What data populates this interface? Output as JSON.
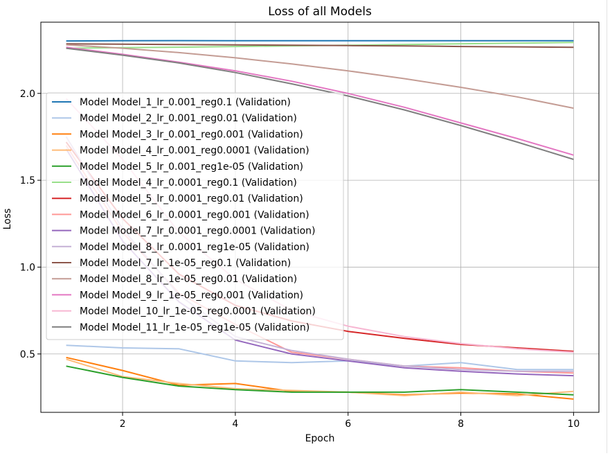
{
  "chart_data": {
    "type": "line",
    "title": "Loss of all Models",
    "xlabel": "Epoch",
    "ylabel": "Loss",
    "xlim": [
      0.55,
      10.45
    ],
    "ylim": [
      0.164,
      2.41
    ],
    "x_ticks": [
      2,
      4,
      6,
      8,
      10
    ],
    "y_ticks": [
      0.5,
      1.0,
      1.5,
      2.0
    ],
    "x_tick_labels": [
      "2",
      "4",
      "6",
      "8",
      "10"
    ],
    "y_tick_labels": [
      "0.5",
      "1.0",
      "1.5",
      "2.0"
    ],
    "grid": true,
    "legend_position": "upper-left",
    "x": [
      1,
      2,
      3,
      4,
      5,
      6,
      7,
      8,
      9,
      10
    ],
    "series": [
      {
        "name": "Model Model_1_lr_0.001_reg0.1 (Validation)",
        "color": "#1f77b4",
        "values": [
          2.302,
          2.303,
          2.304,
          2.303,
          2.303,
          2.303,
          2.303,
          2.303,
          2.303,
          2.303
        ]
      },
      {
        "name": "Model Model_2_lr_0.001_reg0.01 (Validation)",
        "color": "#aec7e8",
        "values": [
          0.55,
          0.535,
          0.53,
          0.46,
          0.45,
          0.46,
          0.43,
          0.45,
          0.41,
          0.41
        ]
      },
      {
        "name": "Model Model_3_lr_0.001_reg0.001 (Validation)",
        "color": "#ff7f0e",
        "values": [
          0.48,
          0.405,
          0.32,
          0.33,
          0.285,
          0.28,
          0.265,
          0.275,
          0.27,
          0.24
        ]
      },
      {
        "name": "Model Model_4_lr_0.001_reg0.0001 (Validation)",
        "color": "#ffbb78",
        "values": [
          0.47,
          0.37,
          0.33,
          0.3,
          0.29,
          0.28,
          0.26,
          0.28,
          0.26,
          0.285
        ]
      },
      {
        "name": "Model Model_5_lr_0.001_reg1e-05 (Validation)",
        "color": "#2ca02c",
        "values": [
          0.43,
          0.365,
          0.315,
          0.295,
          0.28,
          0.28,
          0.28,
          0.295,
          0.28,
          0.265
        ]
      },
      {
        "name": "Model Model_4_lr_0.0001_reg0.1 (Validation)",
        "color": "#98df8a",
        "values": [
          2.26,
          2.263,
          2.266,
          2.27,
          2.273,
          2.277,
          2.281,
          2.285,
          2.289,
          2.293
        ]
      },
      {
        "name": "Model Model_5_lr_0.0001_reg0.01 (Validation)",
        "color": "#d62728",
        "values": [
          1.72,
          1.28,
          0.96,
          0.78,
          0.69,
          0.63,
          0.59,
          0.555,
          0.535,
          0.515
        ]
      },
      {
        "name": "Model Model_6_lr_0.0001_reg0.001 (Validation)",
        "color": "#ff9896",
        "values": [
          1.7,
          1.2,
          0.85,
          0.67,
          0.51,
          0.47,
          0.43,
          0.42,
          0.4,
          0.39
        ]
      },
      {
        "name": "Model Model_7_lr_0.0001_reg0.0001 (Validation)",
        "color": "#9467bd",
        "values": [
          1.68,
          1.15,
          0.8,
          0.58,
          0.5,
          0.46,
          0.42,
          0.4,
          0.385,
          0.375
        ]
      },
      {
        "name": "Model Model_8_lr_0.0001_reg1e-05 (Validation)",
        "color": "#c5b0d5",
        "values": [
          1.75,
          1.22,
          0.84,
          0.6,
          0.52,
          0.47,
          0.43,
          0.41,
          0.4,
          0.4
        ]
      },
      {
        "name": "Model Model_7_lr_1e-05_reg0.1 (Validation)",
        "color": "#8c564b",
        "values": [
          2.285,
          2.283,
          2.281,
          2.279,
          2.277,
          2.275,
          2.273,
          2.27,
          2.268,
          2.265
        ]
      },
      {
        "name": "Model Model_8_lr_1e-05_reg0.01 (Validation)",
        "color": "#c49c94",
        "values": [
          2.28,
          2.26,
          2.235,
          2.205,
          2.17,
          2.13,
          2.085,
          2.035,
          1.98,
          1.915
        ]
      },
      {
        "name": "Model Model_9_lr_1e-05_reg0.001 (Validation)",
        "color": "#e377c2",
        "values": [
          2.265,
          2.225,
          2.18,
          2.13,
          2.07,
          2.0,
          1.92,
          1.83,
          1.74,
          1.645
        ]
      },
      {
        "name": "Model Model_10_lr_1e-05_reg0.0001 (Validation)",
        "color": "#f7b6d2",
        "values": [
          1.97,
          1.62,
          1.2,
          0.93,
          0.75,
          0.66,
          0.6,
          0.56,
          0.53,
          0.51
        ]
      },
      {
        "name": "Model Model_11_lr_1e-05_reg1e-05 (Validation)",
        "color": "#7f7f7f",
        "values": [
          2.26,
          2.22,
          2.175,
          2.12,
          2.055,
          1.985,
          1.905,
          1.815,
          1.72,
          1.62
        ]
      }
    ]
  }
}
